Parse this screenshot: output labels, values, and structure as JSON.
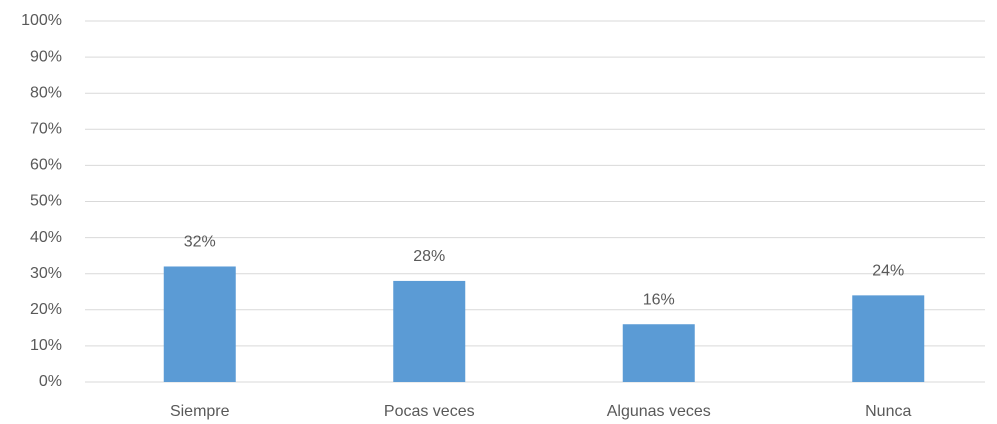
{
  "chart_data": {
    "type": "bar",
    "categories": [
      "Siempre",
      "Pocas veces",
      "Algunas veces",
      "Nunca"
    ],
    "values": [
      32,
      28,
      16,
      24
    ],
    "value_labels": [
      "32%",
      "28%",
      "16%",
      "24%"
    ],
    "color": "#5b9bd5",
    "ylim": [
      0,
      100
    ],
    "yticks": [
      {
        "value": 0,
        "label": "0%"
      },
      {
        "value": 10,
        "label": "10%"
      },
      {
        "value": 20,
        "label": "20%"
      },
      {
        "value": 30,
        "label": "30%"
      },
      {
        "value": 40,
        "label": "40%"
      },
      {
        "value": 50,
        "label": "50%"
      },
      {
        "value": 60,
        "label": "60%"
      },
      {
        "value": 70,
        "label": "70%"
      },
      {
        "value": 80,
        "label": "80%"
      },
      {
        "value": 90,
        "label": "90%"
      },
      {
        "value": 100,
        "label": "100%"
      }
    ],
    "grid": true
  }
}
